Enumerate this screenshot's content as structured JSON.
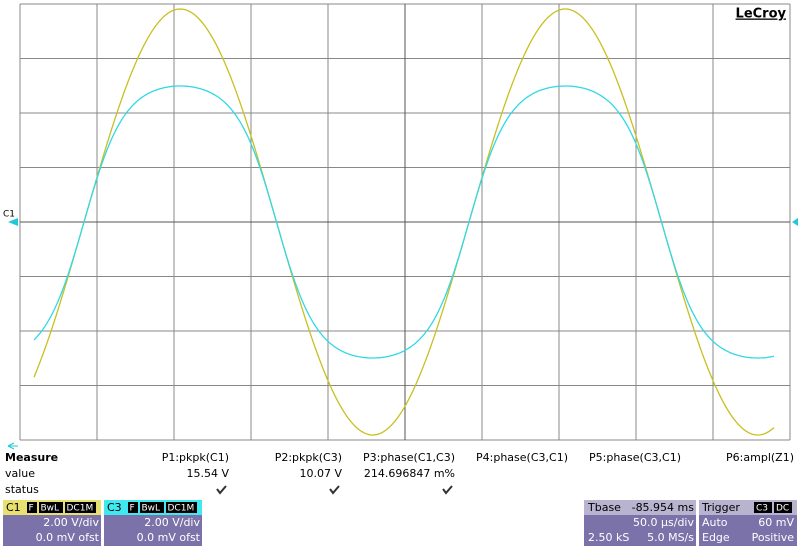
{
  "brand": "LeCroy",
  "trace_marker": "C1",
  "measure": {
    "row_labels": [
      "Measure",
      "value",
      "status"
    ],
    "columns": [
      {
        "name": "P1:pkpk(C1)",
        "value": "15.54 V"
      },
      {
        "name": "P2:pkpk(C3)",
        "value": "10.07 V"
      },
      {
        "name": "P3:phase(C1,C3)",
        "value": "214.696847 m%"
      },
      {
        "name": "P4:phase(C3,C1)"
      },
      {
        "name": "P5:phase(C3,C1)"
      },
      {
        "name": "P6:ampl(Z1)"
      }
    ]
  },
  "channels": [
    {
      "label": "C1",
      "tags": [
        "F",
        "BwL",
        "DC1M"
      ],
      "scale": "2.00 V/div",
      "offset": "0.0 mV ofst",
      "color": "#e8e070"
    },
    {
      "label": "C3",
      "tags": [
        "F",
        "BwL",
        "DC1M"
      ],
      "scale": "2.00 V/div",
      "offset": "0.0 mV ofst",
      "color": "#40e8f0"
    }
  ],
  "timebase": {
    "label": "Tbase",
    "delay": "-85.954 ms",
    "scale": "50.0 µs/div",
    "samples": "2.50 kS",
    "rate": "5.0 MS/s"
  },
  "trigger": {
    "label": "Trigger",
    "channel": "C3",
    "coupling": "DC",
    "mode": "Auto",
    "level": "60 mV",
    "type": "Edge",
    "slope": "Positive"
  }
}
